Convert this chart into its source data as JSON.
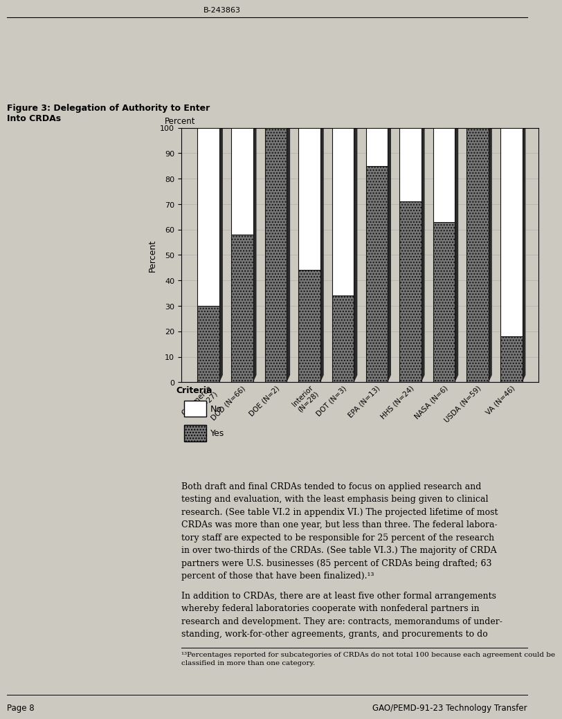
{
  "title_line1": "Figure 3: Delegation of Authority to Enter",
  "title_line2": "Into CRDAs",
  "ylabel": "Percent",
  "categories": [
    "Commerce\n(N=27)",
    "DOD (N=66)",
    "DOE (N=2)",
    "Interior\n(N=28)",
    "DOT (N=3)",
    "EPA (N=13)",
    "HHS (N=24)",
    "NASA (N=6)",
    "USDA (N=59)",
    "VA (N=46)"
  ],
  "yes_values": [
    30,
    58,
    100,
    44,
    34,
    85,
    71,
    63,
    100,
    18
  ],
  "no_values": [
    70,
    42,
    0,
    56,
    66,
    15,
    29,
    37,
    0,
    82
  ],
  "yes_color": "#666666",
  "no_color": "#ffffff",
  "bar_edge_color": "#111111",
  "ylim": [
    0,
    100
  ],
  "yticks": [
    0,
    10,
    20,
    30,
    40,
    50,
    60,
    70,
    80,
    90,
    100
  ],
  "legend_title": "Criteria",
  "legend_no": "No",
  "legend_yes": "Yes",
  "header_bar_color": "#111111",
  "background_color": "#ccc9c0",
  "header_top": "B-243863",
  "body_text1": "Both draft and final CRDAs tended to focus on applied research and\ntesting and evaluation, with the least emphasis being given to clinical\nresearch. (See table VI.2 in appendix VI.) The projected lifetime of most\nCRDAs was more than one year, but less than three. The federal labora-\ntory staff are expected to be responsible for 25 percent of the research\nin over two-thirds of the CRDAs. (See table VI.3.) The majority of CRDA\npartners were U.S. businesses (85 percent of CRDAs being drafted; 63\npercent of those that have been finalized).¹³",
  "body_text2": "In addition to CRDAs, there are at least five other formal arrangements\nwhereby federal laboratories cooperate with nonfederal partners in\nresearch and development. They are: contracts, memorandums of under-\nstanding, work-for-other agreements, grants, and procurements to do",
  "footnote": "¹³Percentages reported for subcategories of CRDAs do not total 100 because each agreement could be\nclassified in more than one category.",
  "page_left": "Page 8",
  "page_right": "GAO/PEMD-91-23 Technology Transfer"
}
